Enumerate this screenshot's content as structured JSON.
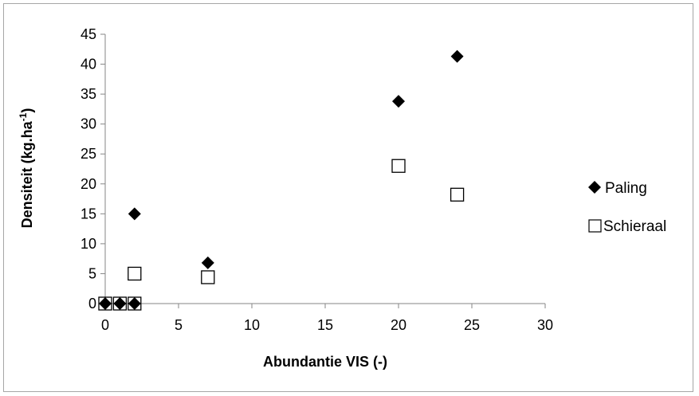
{
  "chart_data": {
    "type": "scatter",
    "title": "",
    "xlabel": "Abundantie VIS (-)",
    "ylabel_main": "Densiteit (kg.ha",
    "ylabel_sup": "-1",
    "ylabel_end": ")",
    "xlim": [
      0,
      30
    ],
    "ylim": [
      0,
      45
    ],
    "x_ticks": [
      0,
      5,
      10,
      15,
      20,
      25,
      30
    ],
    "y_ticks": [
      0,
      5,
      10,
      15,
      20,
      25,
      30,
      35,
      40,
      45
    ],
    "grid": false,
    "legend_position": "right",
    "series": [
      {
        "name": "Paling",
        "marker": "filled-diamond",
        "color": "#000000",
        "points": [
          {
            "x": 0,
            "y": 0
          },
          {
            "x": 1,
            "y": 0
          },
          {
            "x": 2,
            "y": 0
          },
          {
            "x": 2,
            "y": 15
          },
          {
            "x": 7,
            "y": 6.8
          },
          {
            "x": 20,
            "y": 33.8
          },
          {
            "x": 24,
            "y": 41.3
          }
        ]
      },
      {
        "name": "Schieraal",
        "marker": "open-square",
        "color": "#000000",
        "points": [
          {
            "x": 0,
            "y": 0
          },
          {
            "x": 1,
            "y": 0
          },
          {
            "x": 2,
            "y": 0
          },
          {
            "x": 2,
            "y": 5
          },
          {
            "x": 7,
            "y": 4.4
          },
          {
            "x": 20,
            "y": 23
          },
          {
            "x": 24,
            "y": 18.2
          }
        ]
      }
    ]
  }
}
